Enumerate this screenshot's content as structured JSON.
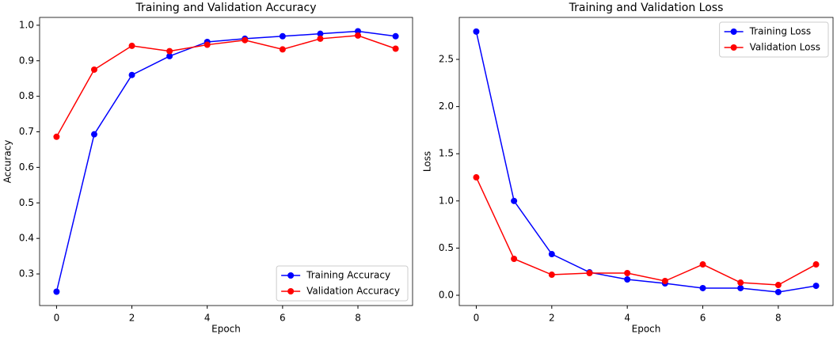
{
  "chart_data": [
    {
      "type": "line",
      "title": "Training and Validation Accuracy",
      "xlabel": "Epoch",
      "ylabel": "Accuracy",
      "x": [
        0,
        1,
        2,
        3,
        4,
        5,
        6,
        7,
        8,
        9
      ],
      "series": [
        {
          "name": "Training Accuracy",
          "color": "#0000ff",
          "values": [
            0.25,
            0.693,
            0.86,
            0.913,
            0.953,
            0.962,
            0.969,
            0.976,
            0.983,
            0.969
          ]
        },
        {
          "name": "Validation Accuracy",
          "color": "#ff0000",
          "values": [
            0.686,
            0.875,
            0.942,
            0.927,
            0.945,
            0.958,
            0.932,
            0.962,
            0.971,
            0.934
          ]
        }
      ],
      "xlim": [
        -0.45,
        9.45
      ],
      "ylim": [
        0.211,
        1.022
      ],
      "xticks": [
        0,
        2,
        4,
        6,
        8
      ],
      "yticks": [
        0.3,
        0.4,
        0.5,
        0.6,
        0.7,
        0.8,
        0.9,
        {
          "value": 1,
          "label": "1.0"
        }
      ],
      "legend": "lower right"
    },
    {
      "type": "line",
      "title": "Training and Validation Loss",
      "xlabel": "Epoch",
      "ylabel": "Loss",
      "x": [
        0,
        1,
        2,
        3,
        4,
        5,
        6,
        7,
        8,
        9
      ],
      "series": [
        {
          "name": "Training Loss",
          "color": "#0000ff",
          "values": [
            2.795,
            1.0,
            0.436,
            0.243,
            0.168,
            0.126,
            0.076,
            0.076,
            0.034,
            0.1
          ]
        },
        {
          "name": "Validation Loss",
          "color": "#ff0000",
          "values": [
            1.25,
            0.386,
            0.218,
            0.235,
            0.235,
            0.151,
            0.327,
            0.134,
            0.109,
            0.327
          ]
        }
      ],
      "xlim": [
        -0.45,
        9.45
      ],
      "ylim": [
        -0.109,
        2.945
      ],
      "xticks": [
        0,
        2,
        4,
        6,
        8
      ],
      "yticks": [
        {
          "value": 0,
          "label": "0.0"
        },
        0.5,
        {
          "value": 1,
          "label": "1.0"
        },
        1.5,
        {
          "value": 2,
          "label": "2.0"
        },
        2.5
      ],
      "legend": "upper right"
    }
  ]
}
